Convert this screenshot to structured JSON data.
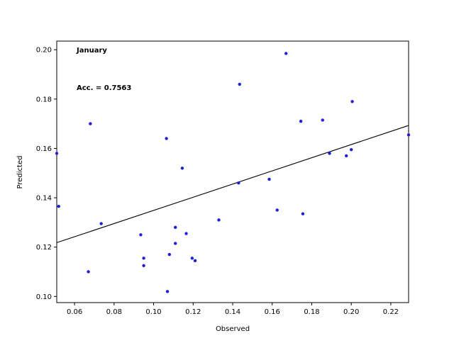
{
  "chart_data": {
    "type": "scatter",
    "annotations": [
      "January",
      "Acc. = 0.7563"
    ],
    "xlabel": "Observed",
    "ylabel": "Predicted",
    "xlim": [
      0.051,
      0.229
    ],
    "ylim": [
      0.0975,
      0.2035
    ],
    "xticks": [
      "0.06",
      "0.08",
      "0.10",
      "0.12",
      "0.14",
      "0.16",
      "0.18",
      "0.20",
      "0.22"
    ],
    "yticks": [
      "0.10",
      "0.12",
      "0.14",
      "0.16",
      "0.18",
      "0.20"
    ],
    "grid": false,
    "point_color": "#1f1fd6",
    "line_color": "#000000",
    "points": [
      {
        "x": 0.051,
        "y": 0.158
      },
      {
        "x": 0.052,
        "y": 0.1365
      },
      {
        "x": 0.067,
        "y": 0.11
      },
      {
        "x": 0.068,
        "y": 0.17
      },
      {
        "x": 0.0735,
        "y": 0.1295
      },
      {
        "x": 0.0935,
        "y": 0.125
      },
      {
        "x": 0.095,
        "y": 0.1155
      },
      {
        "x": 0.095,
        "y": 0.1125
      },
      {
        "x": 0.1065,
        "y": 0.164
      },
      {
        "x": 0.107,
        "y": 0.102
      },
      {
        "x": 0.108,
        "y": 0.117
      },
      {
        "x": 0.111,
        "y": 0.1215
      },
      {
        "x": 0.111,
        "y": 0.128
      },
      {
        "x": 0.1145,
        "y": 0.152
      },
      {
        "x": 0.1165,
        "y": 0.1255
      },
      {
        "x": 0.1195,
        "y": 0.1155
      },
      {
        "x": 0.121,
        "y": 0.1145
      },
      {
        "x": 0.133,
        "y": 0.131
      },
      {
        "x": 0.143,
        "y": 0.146
      },
      {
        "x": 0.1435,
        "y": 0.186
      },
      {
        "x": 0.1585,
        "y": 0.1475
      },
      {
        "x": 0.1625,
        "y": 0.135
      },
      {
        "x": 0.167,
        "y": 0.1985
      },
      {
        "x": 0.1745,
        "y": 0.171
      },
      {
        "x": 0.1755,
        "y": 0.1335
      },
      {
        "x": 0.1855,
        "y": 0.1715
      },
      {
        "x": 0.189,
        "y": 0.158
      },
      {
        "x": 0.1975,
        "y": 0.157
      },
      {
        "x": 0.2,
        "y": 0.1595
      },
      {
        "x": 0.2005,
        "y": 0.179
      },
      {
        "x": 0.229,
        "y": 0.1655
      }
    ],
    "fit_line": {
      "x": [
        0.051,
        0.229
      ],
      "y": [
        0.1218,
        0.1693
      ]
    }
  }
}
